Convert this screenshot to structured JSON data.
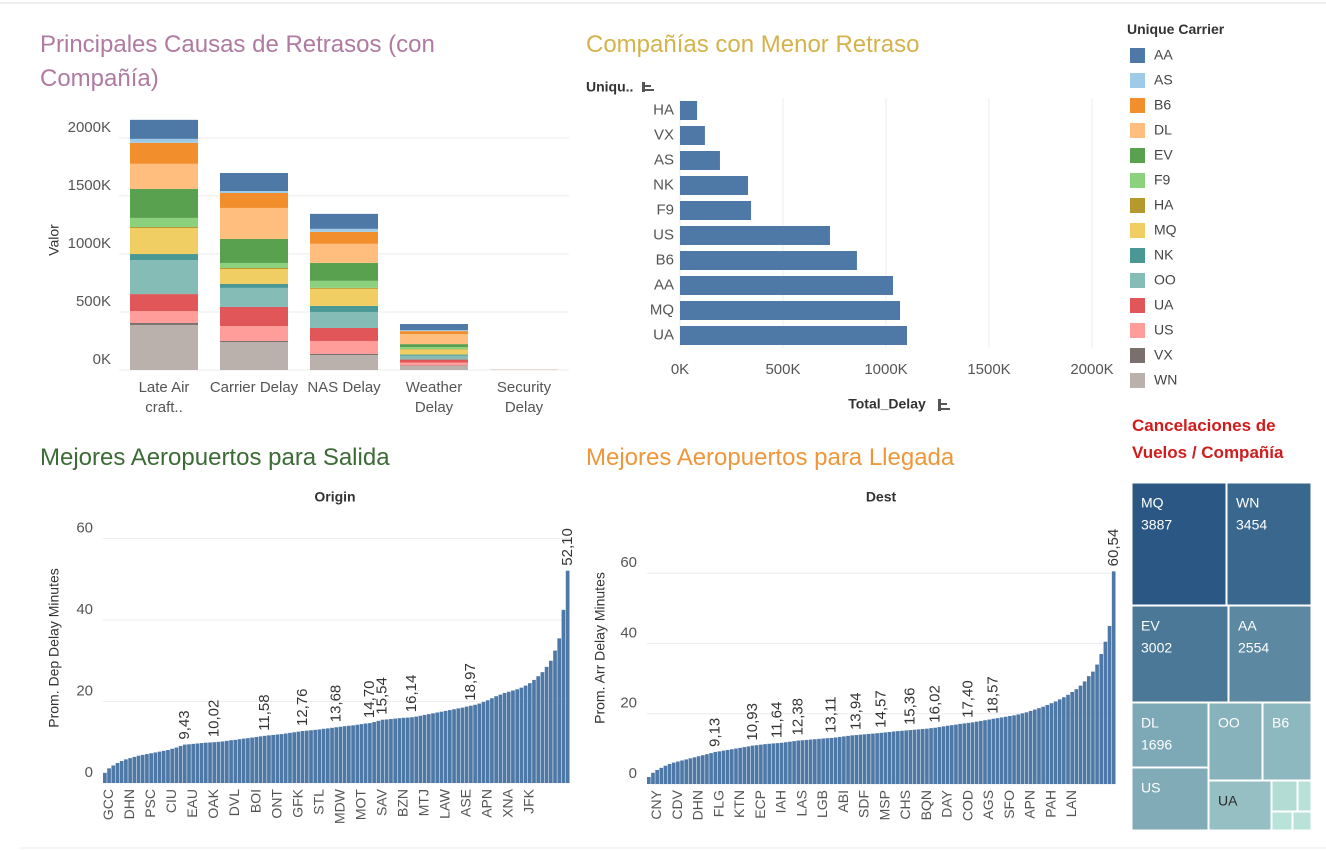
{
  "chart_data": [
    {
      "type": "stacked_bar",
      "title": "Principales Causas de Retrasos (con Compañía)",
      "y_label": "Valor",
      "legend_title": "Unique Carrier",
      "categories": [
        "Late Air craft..",
        "Carrier Delay",
        "NAS Delay",
        "Weather Delay",
        "Security Delay"
      ],
      "series": [
        {
          "name": "AA",
          "color": "#4e79a7",
          "values": [
            164000,
            155000,
            129000,
            52000,
            300
          ]
        },
        {
          "name": "AS",
          "color": "#a0cbe8",
          "values": [
            34000,
            17000,
            26000,
            9000,
            100
          ]
        },
        {
          "name": "B6",
          "color": "#f28e2b",
          "values": [
            181000,
            129000,
            103000,
            26000,
            300
          ]
        },
        {
          "name": "DL",
          "color": "#ffbe7d",
          "values": [
            216000,
            267000,
            164000,
            86000,
            400
          ]
        },
        {
          "name": "EV",
          "color": "#59a14f",
          "values": [
            250000,
            207000,
            155000,
            26000,
            300
          ]
        },
        {
          "name": "F9",
          "color": "#8cd17d",
          "values": [
            78000,
            43000,
            60000,
            17000,
            100
          ]
        },
        {
          "name": "HA",
          "color": "#b6992d",
          "values": [
            9000,
            9000,
            9000,
            4000,
            50
          ]
        },
        {
          "name": "MQ",
          "color": "#f1ce63",
          "values": [
            224000,
            129000,
            147000,
            43000,
            200
          ]
        },
        {
          "name": "NK",
          "color": "#499894",
          "values": [
            52000,
            34000,
            52000,
            9000,
            100
          ]
        },
        {
          "name": "OO",
          "color": "#86bcb6",
          "values": [
            293000,
            164000,
            138000,
            34000,
            300
          ]
        },
        {
          "name": "UA",
          "color": "#e15759",
          "values": [
            146000,
            164000,
            112000,
            26000,
            300
          ]
        },
        {
          "name": "US",
          "color": "#ff9d9a",
          "values": [
            103000,
            129000,
            112000,
            26000,
            200
          ]
        },
        {
          "name": "VX",
          "color": "#79706e",
          "values": [
            17000,
            9000,
            9000,
            4000,
            50
          ]
        },
        {
          "name": "WN",
          "color": "#bab0ac",
          "values": [
            388000,
            241000,
            129000,
            34000,
            1500
          ]
        }
      ],
      "ylim": [
        0,
        2300000
      ],
      "yticks": [
        {
          "value": 0,
          "label": "0K"
        },
        {
          "value": 500000,
          "label": "500K"
        },
        {
          "value": 1000000,
          "label": "1000K"
        },
        {
          "value": 1500000,
          "label": "1500K"
        },
        {
          "value": 2000000,
          "label": "2000K"
        }
      ],
      "grid": true
    },
    {
      "type": "hbar",
      "title": "Compañías con Menor Retraso",
      "y_header": "Uniqu..",
      "x_label": "Total_Delay",
      "categories": [
        "HA",
        "VX",
        "AS",
        "NK",
        "F9",
        "US",
        "B6",
        "AA",
        "MQ",
        "UA"
      ],
      "values": [
        83000,
        121000,
        194000,
        330000,
        345000,
        728000,
        859000,
        1034000,
        1068000,
        1102000
      ],
      "color": "#4e79a7",
      "xlim": [
        0,
        2000000
      ],
      "xticks": [
        {
          "value": 0,
          "label": "0K"
        },
        {
          "value": 500000,
          "label": "500K"
        },
        {
          "value": 1000000,
          "label": "1000K"
        },
        {
          "value": 1500000,
          "label": "1500K"
        },
        {
          "value": 2000000,
          "label": "2000K"
        }
      ],
      "grid": true
    },
    {
      "type": "bar",
      "title": "Mejores Aeropuertos para Salida",
      "header": "Origin",
      "y_label": "Prom. Dep Delay Minutes",
      "categories": [
        null,
        "GCC",
        null,
        null,
        null,
        null,
        "DHN",
        null,
        null,
        null,
        null,
        "PSC",
        null,
        null,
        null,
        null,
        "CIU",
        null,
        null,
        null,
        null,
        "EAU",
        null,
        null,
        null,
        null,
        "OAK",
        null,
        null,
        null,
        null,
        "DVL",
        null,
        null,
        null,
        null,
        "BOI",
        null,
        null,
        null,
        null,
        "ONT",
        null,
        null,
        null,
        null,
        "GFK",
        null,
        null,
        null,
        null,
        "STL",
        null,
        null,
        null,
        null,
        "MDW",
        null,
        null,
        null,
        null,
        "MOT",
        null,
        null,
        null,
        null,
        "SAV",
        null,
        null,
        null,
        null,
        "BZN",
        null,
        null,
        null,
        null,
        "MTJ",
        null,
        null,
        null,
        null,
        "LAW",
        null,
        null,
        null,
        null,
        "ASE",
        null,
        null,
        null,
        null,
        "APN",
        null,
        null,
        null,
        null,
        "XNA",
        null,
        null,
        null,
        null,
        "JFK",
        null,
        null,
        null,
        null,
        null,
        null,
        null,
        null,
        null
      ],
      "values": [
        2.5,
        3.6,
        4.3,
        4.9,
        5.4,
        5.8,
        6.1,
        6.4,
        6.7,
        6.9,
        7.1,
        7.3,
        7.5,
        7.7,
        7.9,
        8.1,
        8.4,
        8.7,
        9.1,
        9.43,
        9.5,
        9.6,
        9.7,
        9.8,
        9.9,
        9.95,
        10.02,
        10.1,
        10.2,
        10.35,
        10.5,
        10.6,
        10.75,
        10.9,
        11.0,
        11.15,
        11.3,
        11.45,
        11.58,
        11.7,
        11.8,
        11.9,
        12.0,
        12.15,
        12.3,
        12.45,
        12.6,
        12.76,
        12.85,
        12.95,
        13.05,
        13.15,
        13.3,
        13.4,
        13.55,
        13.68,
        13.8,
        13.95,
        14.05,
        14.15,
        14.3,
        14.45,
        14.6,
        14.7,
        14.95,
        15.25,
        15.54,
        15.6,
        15.7,
        15.8,
        15.9,
        16.0,
        16.05,
        16.14,
        16.3,
        16.5,
        16.7,
        16.9,
        17.1,
        17.3,
        17.5,
        17.7,
        17.9,
        18.1,
        18.3,
        18.5,
        18.75,
        18.97,
        19.2,
        19.5,
        19.9,
        20.3,
        20.8,
        21.3,
        21.7,
        22.1,
        22.4,
        22.7,
        23.0,
        23.4,
        23.9,
        24.5,
        25.3,
        26.2,
        27.2,
        28.5,
        30.0,
        32.5,
        35.5,
        42.5,
        52.1
      ],
      "value_labels": [
        null,
        null,
        null,
        null,
        null,
        null,
        null,
        null,
        null,
        null,
        null,
        null,
        null,
        null,
        null,
        null,
        null,
        null,
        null,
        "9,43",
        null,
        null,
        null,
        null,
        null,
        null,
        "10,02",
        null,
        null,
        null,
        null,
        null,
        null,
        null,
        null,
        null,
        null,
        null,
        "11,58",
        null,
        null,
        null,
        null,
        null,
        null,
        null,
        null,
        "12,76",
        null,
        null,
        null,
        null,
        null,
        null,
        null,
        "13,68",
        null,
        null,
        null,
        null,
        null,
        null,
        null,
        "14,70",
        null,
        null,
        "15,54",
        null,
        null,
        null,
        null,
        null,
        null,
        "16,14",
        null,
        null,
        null,
        null,
        null,
        null,
        null,
        null,
        null,
        null,
        null,
        null,
        null,
        "18,97",
        null,
        null,
        null,
        null,
        null,
        null,
        null,
        null,
        null,
        null,
        null,
        null,
        null,
        null,
        null,
        null,
        null,
        null,
        null,
        null,
        null,
        null,
        "52,10"
      ],
      "color": "#4e79a7",
      "ylim": [
        0,
        67
      ],
      "yticks": [
        0,
        20,
        40,
        60
      ],
      "grid": true
    },
    {
      "type": "bar",
      "title": "Mejores Aeropuertos para Llegada",
      "header": "Dest",
      "y_label": "Prom. Arr Delay Minutes",
      "categories": [
        null,
        null,
        "CNY",
        null,
        null,
        null,
        null,
        "CDV",
        null,
        null,
        null,
        null,
        "DHN",
        null,
        null,
        null,
        null,
        "FLG",
        null,
        null,
        null,
        null,
        "KTN",
        null,
        null,
        null,
        null,
        "ECP",
        null,
        null,
        null,
        null,
        "IAH",
        null,
        null,
        null,
        null,
        "LAS",
        null,
        null,
        null,
        null,
        "LGB",
        null,
        null,
        null,
        null,
        "ABI",
        null,
        null,
        null,
        null,
        "SDF",
        null,
        null,
        null,
        null,
        "MSP",
        null,
        null,
        null,
        null,
        "CHS",
        null,
        null,
        null,
        null,
        "BQN",
        null,
        null,
        null,
        null,
        "DAY",
        null,
        null,
        null,
        null,
        "COD",
        null,
        null,
        null,
        null,
        "AGS",
        null,
        null,
        null,
        null,
        "SFO",
        null,
        null,
        null,
        null,
        "APN",
        null,
        null,
        null,
        null,
        "PAH",
        null,
        null,
        null,
        null,
        "LAN",
        null,
        null,
        null,
        null,
        null,
        null,
        null,
        null,
        null,
        null
      ],
      "values": [
        2.0,
        3.2,
        4.0,
        4.6,
        5.2,
        5.7,
        6.1,
        6.4,
        6.7,
        7.0,
        7.3,
        7.6,
        7.9,
        8.2,
        8.5,
        8.8,
        9.13,
        9.3,
        9.5,
        9.7,
        9.9,
        10.1,
        10.3,
        10.5,
        10.7,
        10.93,
        11.05,
        11.2,
        11.35,
        11.45,
        11.55,
        11.64,
        11.75,
        11.9,
        12.05,
        12.2,
        12.38,
        12.45,
        12.55,
        12.65,
        12.75,
        12.85,
        12.95,
        13.05,
        13.11,
        13.25,
        13.4,
        13.55,
        13.7,
        13.85,
        13.94,
        14.05,
        14.15,
        14.25,
        14.35,
        14.45,
        14.57,
        14.7,
        14.8,
        14.95,
        15.05,
        15.15,
        15.25,
        15.36,
        15.45,
        15.55,
        15.65,
        15.75,
        15.9,
        16.02,
        16.2,
        16.4,
        16.6,
        16.75,
        16.9,
        17.1,
        17.25,
        17.4,
        17.55,
        17.75,
        17.95,
        18.15,
        18.35,
        18.57,
        18.75,
        18.95,
        19.15,
        19.35,
        19.55,
        19.8,
        20.1,
        20.4,
        20.8,
        21.2,
        21.6,
        22.0,
        22.5,
        23.0,
        23.5,
        24.1,
        24.7,
        25.4,
        26.2,
        27.0,
        28.0,
        29.2,
        30.7,
        32.0,
        34.0,
        37.0,
        40.5,
        45.0,
        60.54
      ],
      "value_labels": [
        null,
        null,
        null,
        null,
        null,
        null,
        null,
        null,
        null,
        null,
        null,
        null,
        null,
        null,
        null,
        null,
        "9,13",
        null,
        null,
        null,
        null,
        null,
        null,
        null,
        null,
        "10,93",
        null,
        null,
        null,
        null,
        null,
        "11,64",
        null,
        null,
        null,
        null,
        "12,38",
        null,
        null,
        null,
        null,
        null,
        null,
        null,
        "13,11",
        null,
        null,
        null,
        null,
        null,
        "13,94",
        null,
        null,
        null,
        null,
        null,
        "14,57",
        null,
        null,
        null,
        null,
        null,
        null,
        "15,36",
        null,
        null,
        null,
        null,
        null,
        "16,02",
        null,
        null,
        null,
        null,
        null,
        null,
        null,
        "17,40",
        null,
        null,
        null,
        null,
        null,
        "18,57",
        null,
        null,
        null,
        null,
        null,
        null,
        null,
        null,
        null,
        null,
        null,
        null,
        null,
        null,
        null,
        null,
        null,
        null,
        null,
        null,
        null,
        null,
        null,
        null,
        null,
        null,
        null,
        null,
        "60,54"
      ],
      "color": "#4e79a7",
      "ylim": [
        0,
        78
      ],
      "yticks": [
        0,
        20,
        40,
        60
      ],
      "grid": true
    },
    {
      "type": "treemap",
      "title": "Cancelaciones de Vuelos / Compañía",
      "categories": [
        "MQ",
        "WN",
        "EV",
        "AA",
        "DL",
        "OO",
        "B6",
        "US",
        "UA",
        null,
        null,
        null,
        null
      ],
      "values": [
        3887,
        3454,
        3002,
        2554,
        1696,
        1410,
        1250,
        1620,
        1070,
        280,
        140,
        120,
        115
      ],
      "color_range": [
        "#b9e2d9",
        "#2a5783"
      ]
    }
  ]
}
